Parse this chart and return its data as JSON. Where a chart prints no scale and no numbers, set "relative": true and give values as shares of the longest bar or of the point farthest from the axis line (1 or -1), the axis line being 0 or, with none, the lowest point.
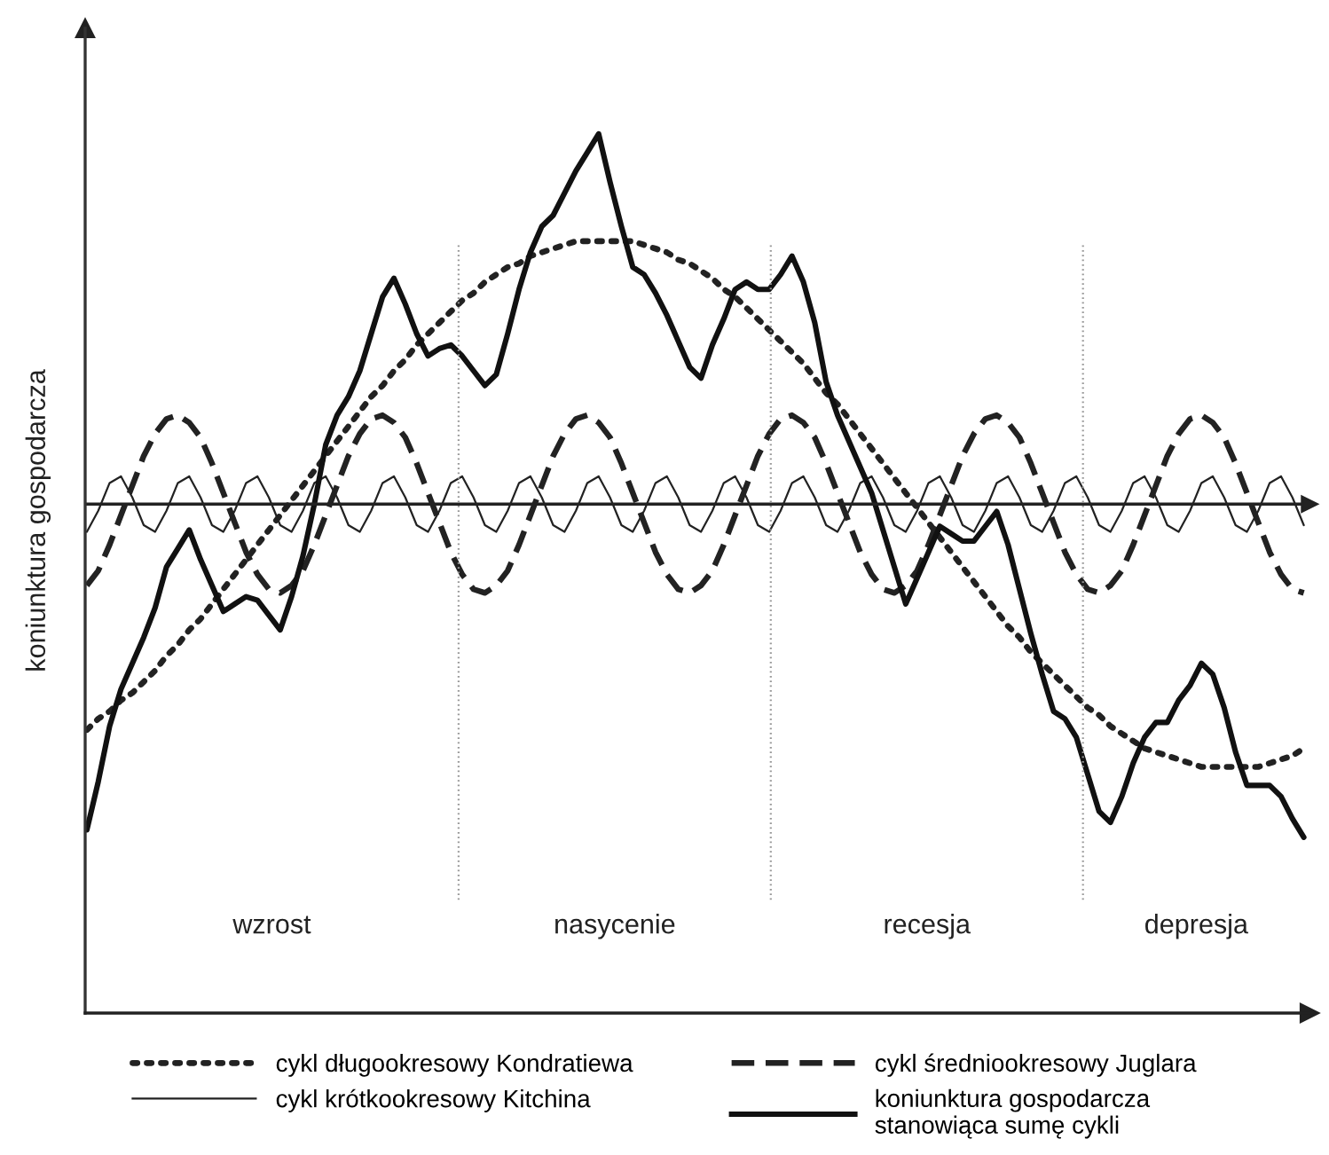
{
  "chart_data": {
    "type": "line",
    "relative": true,
    "ylabel": "koniunktura gospodarcza",
    "categories": [
      null,
      null,
      null,
      null,
      null,
      null,
      null,
      null,
      null,
      null,
      null,
      null,
      null,
      null,
      null,
      null,
      null,
      null,
      null,
      null,
      null,
      null,
      null,
      null,
      null,
      null,
      null,
      null,
      null,
      null,
      null,
      null,
      null,
      null,
      null,
      null,
      null,
      null,
      null,
      null,
      null,
      null,
      null,
      null,
      null,
      null,
      null,
      null,
      null,
      null,
      null,
      null,
      null,
      null,
      null,
      null,
      null,
      null,
      null,
      null,
      null,
      null,
      null,
      null,
      null,
      null,
      null,
      null,
      null,
      null,
      null,
      null,
      null,
      null,
      null,
      null,
      null,
      null,
      null,
      null,
      null,
      null,
      null,
      null,
      null,
      null,
      null,
      null,
      null,
      null,
      null,
      null,
      null,
      null,
      null,
      null,
      null,
      null,
      null,
      null,
      null,
      null,
      null,
      null,
      null,
      null,
      null,
      null
    ],
    "series": [
      {
        "name": "cykl długookresowy Kondratiewa",
        "color": "#222222",
        "line_style": "dotted",
        "values": [
          -0.61,
          -0.58,
          -0.56,
          -0.53,
          -0.51,
          -0.48,
          -0.45,
          -0.41,
          -0.38,
          -0.34,
          -0.31,
          -0.27,
          -0.23,
          -0.19,
          -0.15,
          -0.11,
          -0.07,
          -0.03,
          0.01,
          0.05,
          0.09,
          0.13,
          0.17,
          0.21,
          0.25,
          0.29,
          0.32,
          0.36,
          0.39,
          0.43,
          0.46,
          0.49,
          0.52,
          0.55,
          0.57,
          0.6,
          0.62,
          0.64,
          0.65,
          0.67,
          0.68,
          0.69,
          0.7,
          0.71,
          0.71,
          0.71,
          0.71,
          0.71,
          0.71,
          0.7,
          0.69,
          0.68,
          0.66,
          0.65,
          0.63,
          0.61,
          0.58,
          0.56,
          0.53,
          0.5,
          0.47,
          0.44,
          0.41,
          0.38,
          0.34,
          0.3,
          0.27,
          0.23,
          0.19,
          0.15,
          0.11,
          0.07,
          0.03,
          -0.01,
          -0.05,
          -0.09,
          -0.13,
          -0.17,
          -0.21,
          -0.25,
          -0.29,
          -0.33,
          -0.36,
          -0.4,
          -0.43,
          -0.46,
          -0.49,
          -0.52,
          -0.55,
          -0.57,
          -0.6,
          -0.62,
          -0.64,
          -0.66,
          -0.67,
          -0.68,
          -0.69,
          -0.7,
          -0.71,
          -0.71,
          -0.71,
          -0.71,
          -0.71,
          -0.71,
          -0.7,
          -0.69,
          -0.68,
          -0.66
        ]
      },
      {
        "name": "cykl średniookresowy Juglara",
        "color": "#222222",
        "line_style": "dashed",
        "values": [
          -0.22,
          -0.18,
          -0.11,
          -0.03,
          0.05,
          0.13,
          0.19,
          0.23,
          0.24,
          0.22,
          0.18,
          0.11,
          0.03,
          -0.05,
          -0.13,
          -0.19,
          -0.23,
          -0.24,
          -0.22,
          -0.18,
          -0.11,
          -0.03,
          0.05,
          0.13,
          0.19,
          0.23,
          0.24,
          0.22,
          0.18,
          0.11,
          0.03,
          -0.05,
          -0.13,
          -0.19,
          -0.23,
          -0.24,
          -0.22,
          -0.18,
          -0.11,
          -0.03,
          0.05,
          0.13,
          0.19,
          0.23,
          0.24,
          0.22,
          0.18,
          0.11,
          0.03,
          -0.05,
          -0.13,
          -0.19,
          -0.23,
          -0.24,
          -0.22,
          -0.18,
          -0.11,
          -0.03,
          0.05,
          0.13,
          0.19,
          0.23,
          0.24,
          0.22,
          0.18,
          0.11,
          0.03,
          -0.05,
          -0.13,
          -0.19,
          -0.23,
          -0.24,
          -0.22,
          -0.18,
          -0.11,
          -0.03,
          0.05,
          0.13,
          0.19,
          0.23,
          0.24,
          0.22,
          0.18,
          0.11,
          0.03,
          -0.05,
          -0.13,
          -0.19,
          -0.23,
          -0.24,
          -0.22,
          -0.18,
          -0.11,
          -0.03,
          0.05,
          0.13,
          0.19,
          0.23,
          0.24,
          0.22,
          0.18,
          0.11,
          0.03,
          -0.05,
          -0.13,
          -0.19,
          -0.23,
          -0.24
        ]
      },
      {
        "name": "cykl krótkookresowy Kitchina",
        "color": "#222222",
        "line_style": "solid",
        "values": [
          -0.075,
          -0.018,
          0.057,
          0.075,
          0.018,
          -0.057,
          -0.075,
          -0.018,
          0.057,
          0.075,
          0.018,
          -0.057,
          -0.075,
          -0.018,
          0.057,
          0.075,
          0.018,
          -0.057,
          -0.075,
          -0.018,
          0.057,
          0.075,
          0.018,
          -0.057,
          -0.075,
          -0.018,
          0.057,
          0.075,
          0.018,
          -0.057,
          -0.075,
          -0.018,
          0.057,
          0.075,
          0.018,
          -0.057,
          -0.075,
          -0.018,
          0.057,
          0.075,
          0.018,
          -0.057,
          -0.075,
          -0.018,
          0.057,
          0.075,
          0.018,
          -0.057,
          -0.075,
          -0.018,
          0.057,
          0.075,
          0.018,
          -0.057,
          -0.075,
          -0.018,
          0.057,
          0.075,
          0.018,
          -0.057,
          -0.075,
          -0.018,
          0.057,
          0.075,
          0.018,
          -0.057,
          -0.075,
          -0.018,
          0.057,
          0.075,
          0.018,
          -0.057,
          -0.075,
          -0.018,
          0.057,
          0.075,
          0.018,
          -0.057,
          -0.075,
          -0.018,
          0.057,
          0.075,
          0.018,
          -0.057,
          -0.075,
          -0.018,
          0.057,
          0.075,
          0.018,
          -0.057,
          -0.075,
          -0.018,
          0.057,
          0.075,
          0.018,
          -0.057,
          -0.075,
          -0.018,
          0.057,
          0.075,
          0.018,
          -0.057,
          -0.075,
          -0.018,
          0.057,
          0.075,
          0.018,
          -0.057
        ]
      },
      {
        "name": "koniunktura gospodarcza\nstanowiąca sumę cykli",
        "color": "#111111",
        "line_style": "solid",
        "values": [
          -0.88,
          -0.75,
          -0.6,
          -0.5,
          -0.43,
          -0.36,
          -0.28,
          -0.17,
          -0.12,
          -0.07,
          -0.15,
          -0.22,
          -0.29,
          -0.27,
          -0.25,
          -0.26,
          -0.3,
          -0.34,
          -0.25,
          -0.14,
          0.0,
          0.16,
          0.24,
          0.29,
          0.36,
          0.46,
          0.56,
          0.61,
          0.54,
          0.46,
          0.4,
          0.42,
          0.43,
          0.4,
          0.36,
          0.32,
          0.35,
          0.46,
          0.58,
          0.68,
          0.75,
          0.78,
          0.84,
          0.9,
          0.95,
          1.0,
          0.87,
          0.75,
          0.64,
          0.62,
          0.57,
          0.51,
          0.44,
          0.37,
          0.34,
          0.43,
          0.5,
          0.58,
          0.6,
          0.58,
          0.58,
          0.62,
          0.67,
          0.6,
          0.49,
          0.33,
          0.24,
          0.17,
          0.1,
          0.03,
          -0.07,
          -0.17,
          -0.27,
          -0.2,
          -0.13,
          -0.06,
          -0.08,
          -0.1,
          -0.1,
          -0.06,
          -0.02,
          -0.11,
          -0.23,
          -0.35,
          -0.46,
          -0.56,
          -0.58,
          -0.63,
          -0.73,
          -0.83,
          -0.86,
          -0.79,
          -0.7,
          -0.63,
          -0.59,
          -0.59,
          -0.53,
          -0.49,
          -0.43,
          -0.46,
          -0.55,
          -0.67,
          -0.76,
          -0.76,
          -0.76,
          -0.79,
          -0.85,
          -0.9
        ]
      }
    ],
    "annotations": [
      "wzrost",
      "nasycenie",
      "recesja",
      "depresja"
    ],
    "legend": "bottom",
    "marker": "none"
  }
}
